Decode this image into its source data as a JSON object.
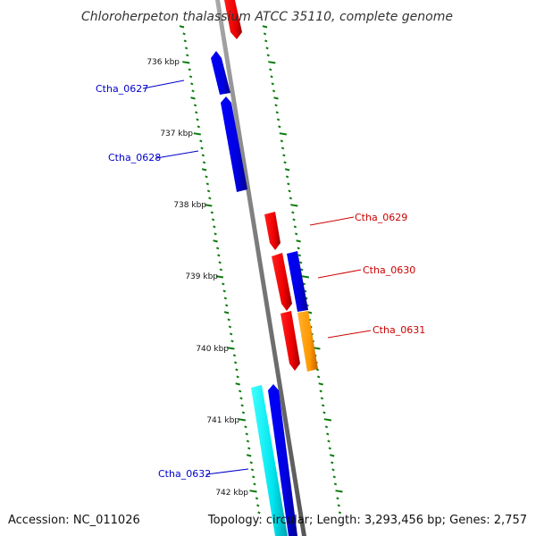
{
  "title": "Chloroherpeton thalassium ATCC 35110, complete genome",
  "footer": {
    "accession": "Accession: NC_011026",
    "summary": "Topology: circular; Length: 3,293,456 bp; Genes: 2,757"
  },
  "colors": {
    "backbone": "#888888",
    "tick": "#0b7a0b",
    "forward_label": "#0000cc",
    "reverse_label": "#cc0000",
    "blue": "#0000e6",
    "red": "#ee0000",
    "cyan": "#00e5ee",
    "orange": "#ff9900"
  },
  "tick_labels": [
    "736 kbp",
    "737 kbp",
    "738 kbp",
    "739 kbp",
    "740 kbp",
    "741 kbp",
    "742 kbp"
  ],
  "gene_labels": [
    "Ctha_0627",
    "Ctha_0628",
    "Ctha_0629",
    "Ctha_0630",
    "Ctha_0631",
    "Ctha_0632"
  ]
}
